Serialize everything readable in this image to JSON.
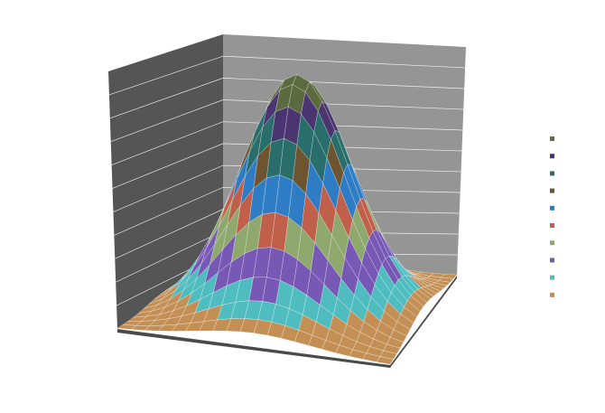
{
  "chart_data": {
    "type": "surface",
    "title": "",
    "legend": {
      "position": "right",
      "entries": [
        {
          "name": "",
          "color": "#5b6b3f"
        },
        {
          "name": "",
          "color": "#4a3570"
        },
        {
          "name": "",
          "color": "#2a6e6c"
        },
        {
          "name": "",
          "color": "#6e5530"
        },
        {
          "name": "",
          "color": "#2e7dc4"
        },
        {
          "name": "",
          "color": "#c0604a"
        },
        {
          "name": "",
          "color": "#8fa86e"
        },
        {
          "name": "",
          "color": "#7758b5"
        },
        {
          "name": "",
          "color": "#4fbcc0"
        },
        {
          "name": "",
          "color": "#c38f55"
        }
      ]
    },
    "bands": [
      {
        "range": [
          0.0,
          0.1
        ],
        "color": "#c38f55"
      },
      {
        "range": [
          0.1,
          0.2
        ],
        "color": "#4fbcc0"
      },
      {
        "range": [
          0.2,
          0.3
        ],
        "color": "#7758b5"
      },
      {
        "range": [
          0.3,
          0.4
        ],
        "color": "#8fa86e"
      },
      {
        "range": [
          0.4,
          0.5
        ],
        "color": "#c0604a"
      },
      {
        "range": [
          0.5,
          0.6
        ],
        "color": "#2e7dc4"
      },
      {
        "range": [
          0.6,
          0.7
        ],
        "color": "#6e5530"
      },
      {
        "range": [
          0.7,
          0.8
        ],
        "color": "#2a6e6c"
      },
      {
        "range": [
          0.8,
          0.9
        ],
        "color": "#4a3570"
      },
      {
        "range": [
          0.9,
          1.0
        ],
        "color": "#5b6b3f"
      }
    ],
    "surface": {
      "function": "gaussian",
      "peak": 1.0,
      "grid_columns": 20,
      "grid_rows": 20
    },
    "zlim": [
      0,
      1
    ],
    "grid": true,
    "colors": {
      "back_wall": "#959595",
      "side_wall": "#555555",
      "floor": "#4a4a4a",
      "gridline": "#ffffff"
    }
  }
}
